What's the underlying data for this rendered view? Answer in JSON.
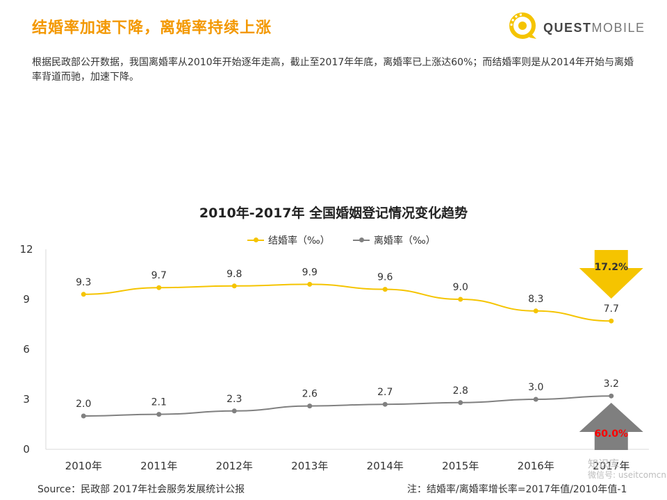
{
  "header": {
    "title": "结婚率加速下降，离婚率持续上涨",
    "logo_text_bold": "QUEST",
    "logo_text_light": "MOBILE"
  },
  "description": "根据民政部公开数据，我国离婚率从2010年开始逐年走高，截止至2017年年底，离婚率已上涨达60%；而结婚率则是从2014年开始与离婚率背道而驰，加速下降。",
  "chart_data": {
    "type": "line",
    "title": "2010年-2017年 全国婚姻登记情况变化趋势",
    "categories": [
      "2010年",
      "2011年",
      "2012年",
      "2013年",
      "2014年",
      "2015年",
      "2016年",
      "2017年"
    ],
    "series": [
      {
        "name": "结婚率（‰）",
        "values": [
          9.3,
          9.7,
          9.8,
          9.9,
          9.6,
          9.0,
          8.3,
          7.7
        ],
        "color": "#f5c400"
      },
      {
        "name": "离婚率（‰）",
        "values": [
          2.0,
          2.1,
          2.3,
          2.6,
          2.7,
          2.8,
          3.0,
          3.2
        ],
        "color": "#808080"
      }
    ],
    "ylim": [
      0,
      12
    ],
    "yticks": [
      "0",
      "3",
      "6",
      "9",
      "12"
    ],
    "annotations": {
      "marriage_change": "17.2%",
      "divorce_change": "60.0%"
    },
    "colors": {
      "down_arrow": "#f5c400",
      "up_arrow": "#7f7f7f",
      "up_label": "#ff0000",
      "down_label": "#333333"
    }
  },
  "footer": {
    "source": "Source：民政部 2017年社会服务发展统计公报",
    "note": "注：结婚率/离婚率增长率=2017年值/2010年值-1"
  },
  "watermark": {
    "line1": "知识库",
    "line2": "微信号: useitcomcn"
  }
}
